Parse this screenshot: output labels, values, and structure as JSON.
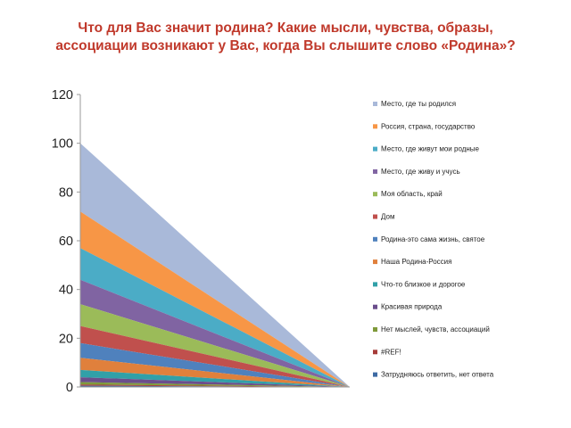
{
  "title_lines": [
    "Что для Вас значит родина? Какие мысли, чувства, образы,",
    "ассоциации возникают у Вас, когда Вы слышите слово «Родина»?"
  ],
  "chart_data": {
    "type": "area",
    "stacked": true,
    "x": [
      0,
      1
    ],
    "ylim": [
      0,
      120
    ],
    "yticks": [
      0,
      20,
      40,
      60,
      80,
      100,
      120
    ],
    "grid": false,
    "legend_position": "right",
    "series": [
      {
        "name": "Место, где ты родился",
        "color": "#a9b9d9",
        "values": [
          28,
          0
        ]
      },
      {
        "name": "Россия, страна, государство",
        "color": "#f79646",
        "values": [
          15,
          0
        ]
      },
      {
        "name": "Место, где живут мои родные",
        "color": "#4bacc6",
        "values": [
          13,
          0
        ]
      },
      {
        "name": "Место, где живу и учусь",
        "color": "#8064a2",
        "values": [
          10,
          0
        ]
      },
      {
        "name": "Моя область, край",
        "color": "#9bbb59",
        "values": [
          9,
          0
        ]
      },
      {
        "name": "Дом",
        "color": "#c0504d",
        "values": [
          7,
          0
        ]
      },
      {
        "name": "Родина-это сама жизнь, святое",
        "color": "#4f81bd",
        "values": [
          6,
          0
        ]
      },
      {
        "name": "Наша Родина-Россия",
        "color": "#e0803c",
        "values": [
          5,
          0
        ]
      },
      {
        "name": "Что-то близкое и дорогое",
        "color": "#31a0a8",
        "values": [
          3,
          0
        ]
      },
      {
        "name": "Красивая природа",
        "color": "#6b4e8c",
        "values": [
          2,
          0
        ]
      },
      {
        "name": "Нет мыслей, чувств, ассоциаций",
        "color": "#7f9a3a",
        "values": [
          1,
          0
        ]
      },
      {
        "name": "#REF!",
        "color": "#a63b38",
        "values": [
          0.5,
          0
        ]
      },
      {
        "name": "Затрудняюсь ответить, нет ответа",
        "color": "#3d6aa3",
        "values": [
          0.5,
          0
        ]
      }
    ]
  }
}
